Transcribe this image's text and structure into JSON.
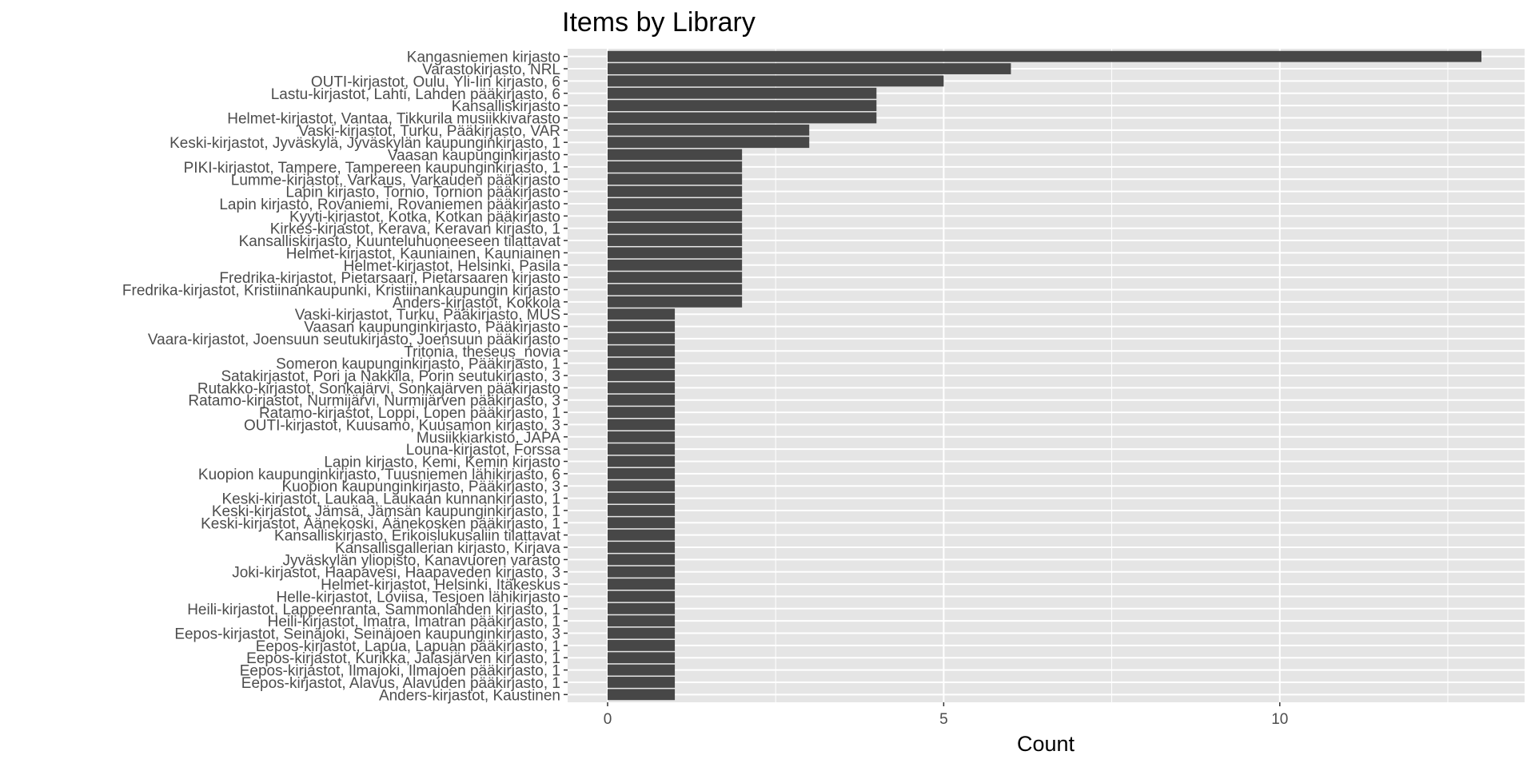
{
  "chart_data": {
    "type": "bar",
    "orientation": "horizontal",
    "title": "Items by Library",
    "xlabel": "Count",
    "ylabel": "",
    "xlim": [
      0,
      13
    ],
    "xticks": [
      0,
      5,
      10
    ],
    "grid": true,
    "colors": {
      "panel": "#e5e5e5",
      "grid": "#ffffff",
      "bar": "#474747",
      "text": "#4d4d4d"
    },
    "categories": [
      "Kangasniemen kirjasto",
      "Varastokirjasto, NRL",
      "OUTI-kirjastot, Oulu, Yli-Iin kirjasto, 6",
      "Lastu-kirjastot, Lahti, Lahden pääkirjasto, 6",
      "Kansalliskirjasto",
      "Helmet-kirjastot, Vantaa, Tikkurila musiikkivarasto",
      "Vaski-kirjastot, Turku, Pääkirjasto, VAR",
      "Keski-kirjastot, Jyväskylä, Jyväskylän kaupunginkirjasto, 1",
      "Vaasan kaupunginkirjasto",
      "PIKI-kirjastot, Tampere, Tampereen kaupunginkirjasto, 1",
      "Lumme-kirjastot, Varkaus, Varkauden pääkirjasto",
      "Lapin kirjasto, Tornio, Tornion pääkirjasto",
      "Lapin kirjasto, Rovaniemi, Rovaniemen pääkirjasto",
      "Kyyti-kirjastot, Kotka, Kotkan pääkirjasto",
      "Kirkes-kirjastot, Kerava, Keravan kirjasto, 1",
      "Kansalliskirjasto, Kuunteluhuoneeseen tilattavat",
      "Helmet-kirjastot, Kauniainen, Kauniainen",
      "Helmet-kirjastot, Helsinki, Pasila",
      "Fredrika-kirjastot, Pietarsaari, Pietarsaaren kirjasto",
      "Fredrika-kirjastot, Kristiinankaupunki, Kristiinankaupungin kirjasto",
      "Anders-kirjastot, Kokkola",
      "Vaski-kirjastot, Turku, Pääkirjasto, MUS",
      "Vaasan kaupunginkirjasto, Pääkirjasto",
      "Vaara-kirjastot, Joensuun seutukirjasto, Joensuun pääkirjasto",
      "Tritonia, theseus_novia",
      "Someron kaupunginkirjasto, Pääkirjasto, 1",
      "Satakirjastot, Pori ja Nakkila, Porin seutukirjasto, 3",
      "Rutakko-kirjastot, Sonkajärvi, Sonkajärven pääkirjasto",
      "Ratamo-kirjastot, Nurmijärvi, Nurmijärven pääkirjasto, 3",
      "Ratamo-kirjastot, Loppi, Lopen pääkirjasto, 1",
      "OUTI-kirjastot, Kuusamo, Kuusamon kirjasto, 3",
      "Musiikkiarkisto, JAPA",
      "Louna-kirjastot, Forssa",
      "Lapin kirjasto, Kemi, Kemin kirjasto",
      "Kuopion kaupunginkirjasto, Tuusniemen lähikirjasto, 6",
      "Kuopion kaupunginkirjasto, Pääkirjasto, 3",
      "Keski-kirjastot, Laukaa, Laukaan kunnankirjasto, 1",
      "Keski-kirjastot, Jämsä, Jämsän kaupunginkirjasto, 1",
      "Keski-kirjastot, Äänekoski, Äänekosken pääkirjasto, 1",
      "Kansalliskirjasto, Erikoislukusaliin tilattavat",
      "Kansallisgallerian kirjasto, Kirjava",
      "Jyväskylän yliopisto, Kanavuoren varasto",
      "Joki-kirjastot, Haapavesi, Haapaveden kirjasto, 3",
      "Helmet-kirjastot, Helsinki, Itäkeskus",
      "Helle-kirjastot, Loviisa, Tesjoen lähikirjasto",
      "Heili-kirjastot, Lappeenranta, Sammonlahden kirjasto, 1",
      "Heili-kirjastot, Imatra, Imatran pääkirjasto, 1",
      "Eepos-kirjastot, Seinäjoki, Seinäjoen kaupunginkirjasto, 3",
      "Eepos-kirjastot, Lapua, Lapuan pääkirjasto, 1",
      "Eepos-kirjastot, Kurikka, Jalasjärven kirjasto, 1",
      "Eepos-kirjastot, Ilmajoki, Ilmajoen pääkirjasto, 1",
      "Eepos-kirjastot, Alavus, Alavuden pääkirjasto, 1",
      "Anders-kirjastot, Kaustinen"
    ],
    "values": [
      13,
      6,
      5,
      4,
      4,
      4,
      3,
      3,
      2,
      2,
      2,
      2,
      2,
      2,
      2,
      2,
      2,
      2,
      2,
      2,
      2,
      1,
      1,
      1,
      1,
      1,
      1,
      1,
      1,
      1,
      1,
      1,
      1,
      1,
      1,
      1,
      1,
      1,
      1,
      1,
      1,
      1,
      1,
      1,
      1,
      1,
      1,
      1,
      1,
      1,
      1,
      1,
      1
    ]
  }
}
